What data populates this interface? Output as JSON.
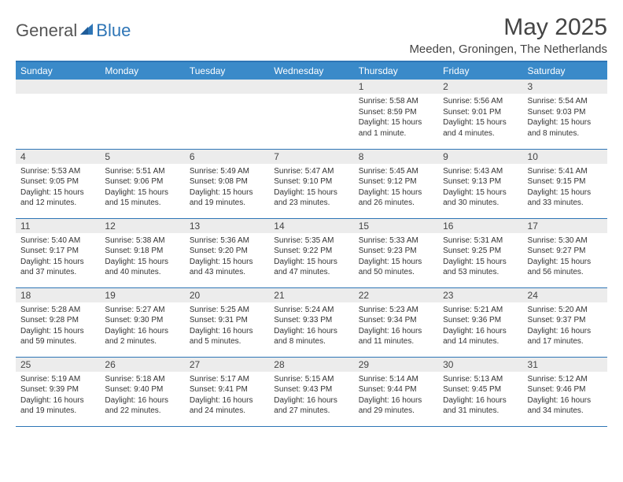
{
  "logo": {
    "general": "General",
    "blue": "Blue"
  },
  "title": "May 2025",
  "location": "Meeden, Groningen, The Netherlands",
  "colors": {
    "header_bg": "#3a8ac9",
    "accent": "#2e75b6",
    "daynum_bg": "#ececec",
    "text": "#333333"
  },
  "weekdays": [
    "Sunday",
    "Monday",
    "Tuesday",
    "Wednesday",
    "Thursday",
    "Friday",
    "Saturday"
  ],
  "weeks": [
    [
      null,
      null,
      null,
      null,
      {
        "n": "1",
        "sr": "Sunrise: 5:58 AM",
        "ss": "Sunset: 8:59 PM",
        "dl": "Daylight: 15 hours and 1 minute."
      },
      {
        "n": "2",
        "sr": "Sunrise: 5:56 AM",
        "ss": "Sunset: 9:01 PM",
        "dl": "Daylight: 15 hours and 4 minutes."
      },
      {
        "n": "3",
        "sr": "Sunrise: 5:54 AM",
        "ss": "Sunset: 9:03 PM",
        "dl": "Daylight: 15 hours and 8 minutes."
      }
    ],
    [
      {
        "n": "4",
        "sr": "Sunrise: 5:53 AM",
        "ss": "Sunset: 9:05 PM",
        "dl": "Daylight: 15 hours and 12 minutes."
      },
      {
        "n": "5",
        "sr": "Sunrise: 5:51 AM",
        "ss": "Sunset: 9:06 PM",
        "dl": "Daylight: 15 hours and 15 minutes."
      },
      {
        "n": "6",
        "sr": "Sunrise: 5:49 AM",
        "ss": "Sunset: 9:08 PM",
        "dl": "Daylight: 15 hours and 19 minutes."
      },
      {
        "n": "7",
        "sr": "Sunrise: 5:47 AM",
        "ss": "Sunset: 9:10 PM",
        "dl": "Daylight: 15 hours and 23 minutes."
      },
      {
        "n": "8",
        "sr": "Sunrise: 5:45 AM",
        "ss": "Sunset: 9:12 PM",
        "dl": "Daylight: 15 hours and 26 minutes."
      },
      {
        "n": "9",
        "sr": "Sunrise: 5:43 AM",
        "ss": "Sunset: 9:13 PM",
        "dl": "Daylight: 15 hours and 30 minutes."
      },
      {
        "n": "10",
        "sr": "Sunrise: 5:41 AM",
        "ss": "Sunset: 9:15 PM",
        "dl": "Daylight: 15 hours and 33 minutes."
      }
    ],
    [
      {
        "n": "11",
        "sr": "Sunrise: 5:40 AM",
        "ss": "Sunset: 9:17 PM",
        "dl": "Daylight: 15 hours and 37 minutes."
      },
      {
        "n": "12",
        "sr": "Sunrise: 5:38 AM",
        "ss": "Sunset: 9:18 PM",
        "dl": "Daylight: 15 hours and 40 minutes."
      },
      {
        "n": "13",
        "sr": "Sunrise: 5:36 AM",
        "ss": "Sunset: 9:20 PM",
        "dl": "Daylight: 15 hours and 43 minutes."
      },
      {
        "n": "14",
        "sr": "Sunrise: 5:35 AM",
        "ss": "Sunset: 9:22 PM",
        "dl": "Daylight: 15 hours and 47 minutes."
      },
      {
        "n": "15",
        "sr": "Sunrise: 5:33 AM",
        "ss": "Sunset: 9:23 PM",
        "dl": "Daylight: 15 hours and 50 minutes."
      },
      {
        "n": "16",
        "sr": "Sunrise: 5:31 AM",
        "ss": "Sunset: 9:25 PM",
        "dl": "Daylight: 15 hours and 53 minutes."
      },
      {
        "n": "17",
        "sr": "Sunrise: 5:30 AM",
        "ss": "Sunset: 9:27 PM",
        "dl": "Daylight: 15 hours and 56 minutes."
      }
    ],
    [
      {
        "n": "18",
        "sr": "Sunrise: 5:28 AM",
        "ss": "Sunset: 9:28 PM",
        "dl": "Daylight: 15 hours and 59 minutes."
      },
      {
        "n": "19",
        "sr": "Sunrise: 5:27 AM",
        "ss": "Sunset: 9:30 PM",
        "dl": "Daylight: 16 hours and 2 minutes."
      },
      {
        "n": "20",
        "sr": "Sunrise: 5:25 AM",
        "ss": "Sunset: 9:31 PM",
        "dl": "Daylight: 16 hours and 5 minutes."
      },
      {
        "n": "21",
        "sr": "Sunrise: 5:24 AM",
        "ss": "Sunset: 9:33 PM",
        "dl": "Daylight: 16 hours and 8 minutes."
      },
      {
        "n": "22",
        "sr": "Sunrise: 5:23 AM",
        "ss": "Sunset: 9:34 PM",
        "dl": "Daylight: 16 hours and 11 minutes."
      },
      {
        "n": "23",
        "sr": "Sunrise: 5:21 AM",
        "ss": "Sunset: 9:36 PM",
        "dl": "Daylight: 16 hours and 14 minutes."
      },
      {
        "n": "24",
        "sr": "Sunrise: 5:20 AM",
        "ss": "Sunset: 9:37 PM",
        "dl": "Daylight: 16 hours and 17 minutes."
      }
    ],
    [
      {
        "n": "25",
        "sr": "Sunrise: 5:19 AM",
        "ss": "Sunset: 9:39 PM",
        "dl": "Daylight: 16 hours and 19 minutes."
      },
      {
        "n": "26",
        "sr": "Sunrise: 5:18 AM",
        "ss": "Sunset: 9:40 PM",
        "dl": "Daylight: 16 hours and 22 minutes."
      },
      {
        "n": "27",
        "sr": "Sunrise: 5:17 AM",
        "ss": "Sunset: 9:41 PM",
        "dl": "Daylight: 16 hours and 24 minutes."
      },
      {
        "n": "28",
        "sr": "Sunrise: 5:15 AM",
        "ss": "Sunset: 9:43 PM",
        "dl": "Daylight: 16 hours and 27 minutes."
      },
      {
        "n": "29",
        "sr": "Sunrise: 5:14 AM",
        "ss": "Sunset: 9:44 PM",
        "dl": "Daylight: 16 hours and 29 minutes."
      },
      {
        "n": "30",
        "sr": "Sunrise: 5:13 AM",
        "ss": "Sunset: 9:45 PM",
        "dl": "Daylight: 16 hours and 31 minutes."
      },
      {
        "n": "31",
        "sr": "Sunrise: 5:12 AM",
        "ss": "Sunset: 9:46 PM",
        "dl": "Daylight: 16 hours and 34 minutes."
      }
    ]
  ]
}
